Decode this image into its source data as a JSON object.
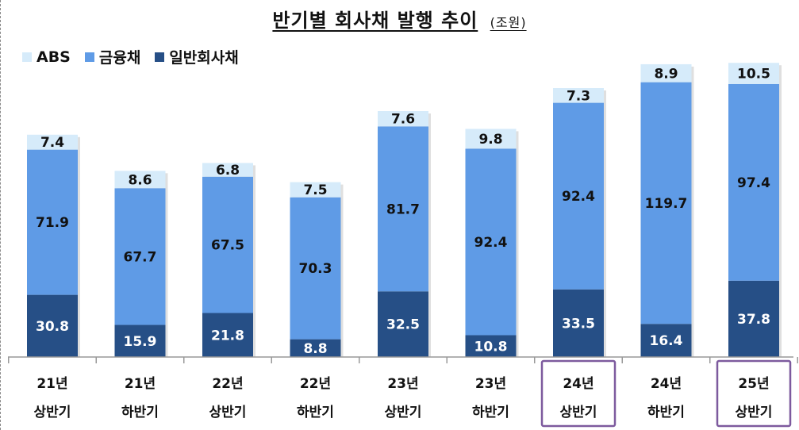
{
  "title": "반기별 회사채 발행 추이",
  "unit": "(조원)",
  "colors": {
    "ABS": "#d6ebfa",
    "financial": "#5f9be6",
    "general": "#264f86",
    "highlight_box": "#7d5a9e",
    "axis": "#999999"
  },
  "chart_data": {
    "type": "bar",
    "stacked": true,
    "title": "반기별 회사채 발행 추이",
    "unit": "(조원)",
    "legend_position": "top-left",
    "grid": false,
    "categories": [
      [
        "21년",
        "상반기"
      ],
      [
        "21년",
        "하반기"
      ],
      [
        "22년",
        "상반기"
      ],
      [
        "22년",
        "하반기"
      ],
      [
        "23년",
        "상반기"
      ],
      [
        "23년",
        "하반기"
      ],
      [
        "24년",
        "상반기"
      ],
      [
        "24년",
        "하반기"
      ],
      [
        "25년",
        "상반기"
      ]
    ],
    "highlighted": [
      6,
      8
    ],
    "series": [
      {
        "name": "일반회사채",
        "color": "#264f86",
        "label_color": "#ffffff",
        "values": [
          30.8,
          15.9,
          21.8,
          8.8,
          32.5,
          10.8,
          33.5,
          16.4,
          37.8
        ]
      },
      {
        "name": "금융채",
        "color": "#5f9be6",
        "label_color": "#111111",
        "values": [
          71.9,
          67.7,
          67.5,
          70.3,
          81.7,
          92.4,
          92.4,
          119.7,
          97.4
        ]
      },
      {
        "name": "ABS",
        "color": "#d6ebfa",
        "label_color": "#111111",
        "values": [
          7.4,
          8.6,
          6.8,
          7.5,
          7.6,
          9.8,
          7.3,
          8.9,
          10.5
        ]
      }
    ],
    "legend_order": [
      "ABS",
      "금융채",
      "일반회사채"
    ]
  }
}
